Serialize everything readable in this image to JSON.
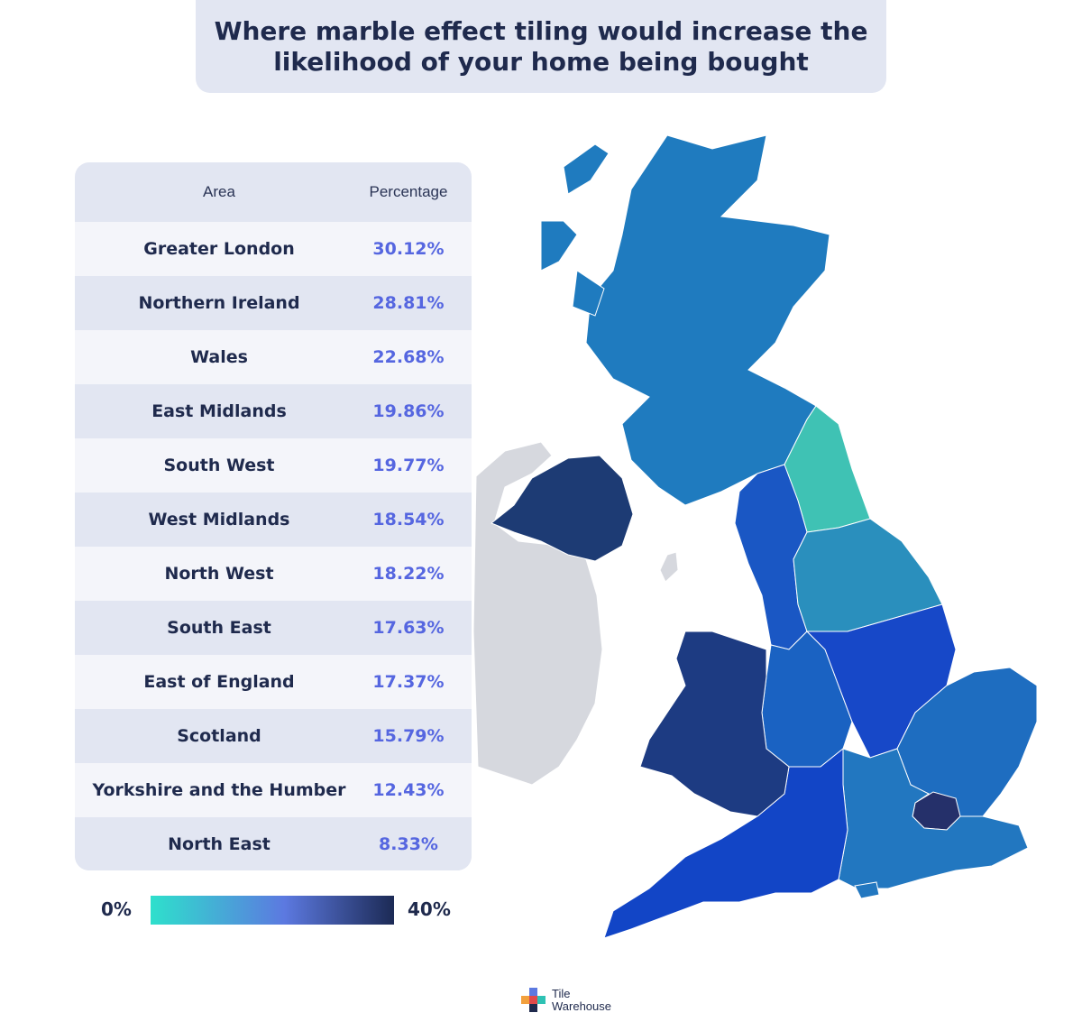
{
  "title": "Where marble effect tiling would increase the likelihood of your home being bought",
  "table": {
    "headers": {
      "area": "Area",
      "percentage": "Percentage"
    },
    "rows": [
      {
        "area": "Greater London",
        "percentage": "30.12%"
      },
      {
        "area": "Northern Ireland",
        "percentage": "28.81%"
      },
      {
        "area": "Wales",
        "percentage": "22.68%"
      },
      {
        "area": "East Midlands",
        "percentage": "19.86%"
      },
      {
        "area": "South West",
        "percentage": "19.77%"
      },
      {
        "area": "West Midlands",
        "percentage": "18.54%"
      },
      {
        "area": "North West",
        "percentage": "18.22%"
      },
      {
        "area": "South East",
        "percentage": "17.63%"
      },
      {
        "area": "East of England",
        "percentage": "17.37%"
      },
      {
        "area": "Scotland",
        "percentage": "15.79%"
      },
      {
        "area": "Yorkshire and the Humber",
        "percentage": "12.43%"
      },
      {
        "area": "North East",
        "percentage": "8.33%"
      }
    ]
  },
  "legend": {
    "min_label": "0%",
    "max_label": "40%",
    "min_color": "#2ee0cc",
    "mid_color": "#5c79e0",
    "max_color": "#1c2a55"
  },
  "region_colors": {
    "scotland": "#1f7bbf",
    "north_east": "#3fc2b4",
    "yorkshire": "#2a8fbd",
    "north_west": "#1a57c4",
    "east_midlands": "#1748c8",
    "west_midlands": "#1a62c2",
    "east_of_england": "#1e6dc0",
    "greater_london": "#25306a",
    "south_east": "#2277c0",
    "south_west": "#1245c6",
    "wales": "#1d3b82",
    "northern_ireland": "#1d3b74",
    "republic_of_ireland": "#d6d8de"
  },
  "logo": {
    "line1": "Tile",
    "line2": "Warehouse"
  }
}
